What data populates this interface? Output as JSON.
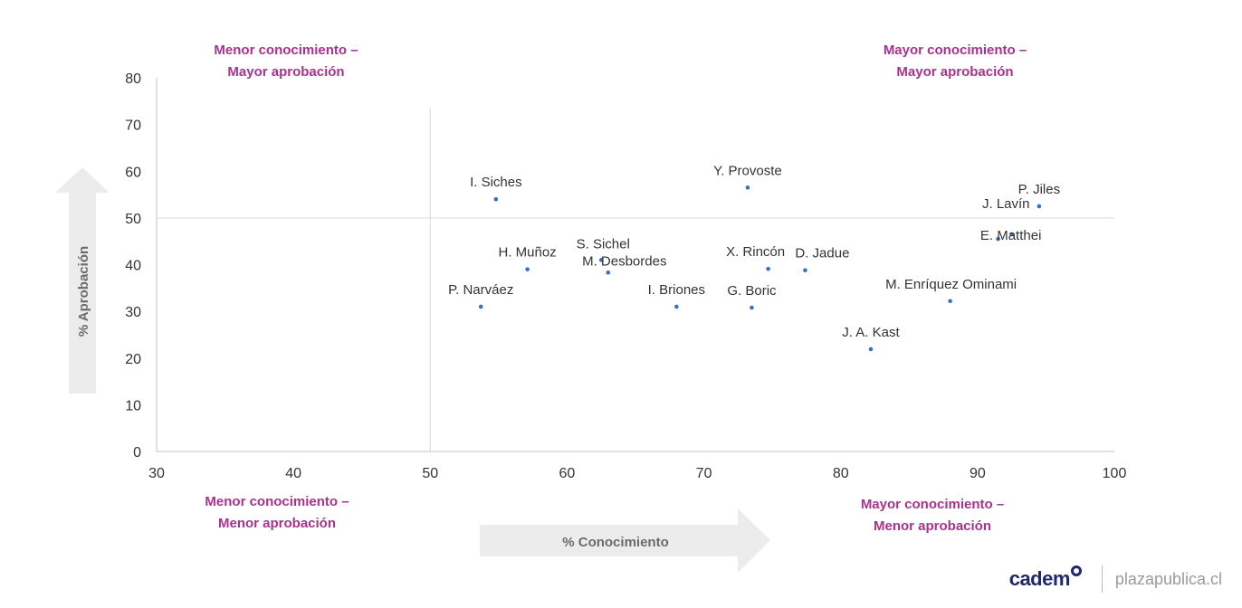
{
  "quadrants": {
    "top_left": [
      "Menor conocimiento –",
      "Mayor aprobación"
    ],
    "top_right": [
      "Mayor conocimiento –",
      "Mayor aprobación"
    ],
    "bottom_left": [
      "Menor conocimiento –",
      "Menor aprobación"
    ],
    "bottom_right": [
      "Mayor conocimiento –",
      "Menor aprobación"
    ]
  },
  "footer": {
    "brand": "cadem",
    "site": "plazapublica.cl"
  },
  "colors": {
    "accent": "#a8328f",
    "point": "#3b6fbf",
    "arrow": "#ececec"
  },
  "chart_data": {
    "type": "scatter",
    "xlabel": "% Conocimiento",
    "ylabel": "% Aprobación",
    "xlim": [
      30,
      100
    ],
    "ylim": [
      0,
      80
    ],
    "xticks": [
      30,
      40,
      50,
      60,
      70,
      80,
      90,
      100
    ],
    "yticks": [
      0,
      10,
      20,
      30,
      40,
      50,
      60,
      70,
      80
    ],
    "reference_lines": {
      "x": 50,
      "y": 50
    },
    "grid": false,
    "points": [
      {
        "label": "I. Siches",
        "x": 54.8,
        "y": 54
      },
      {
        "label": "Y. Provoste",
        "x": 73.2,
        "y": 56.5
      },
      {
        "label": "P. Jiles",
        "x": 94.5,
        "y": 52.5
      },
      {
        "label": "J. Lavín",
        "x": 91.5,
        "y": 45.5
      },
      {
        "label": "E. Matthei",
        "x": 92.5,
        "y": 46.5
      },
      {
        "label": "H. Muñoz",
        "x": 57.1,
        "y": 39
      },
      {
        "label": "S. Sichel",
        "x": 62.5,
        "y": 41
      },
      {
        "label": "M. Desbordes",
        "x": 63,
        "y": 38.3
      },
      {
        "label": "X. Rincón",
        "x": 74.7,
        "y": 39.1
      },
      {
        "label": "D. Jadue",
        "x": 77.4,
        "y": 38.8
      },
      {
        "label": "P. Narváez",
        "x": 53.7,
        "y": 31
      },
      {
        "label": "I. Briones",
        "x": 68,
        "y": 31
      },
      {
        "label": "G. Boric",
        "x": 73.5,
        "y": 30.8
      },
      {
        "label": "M. Enríquez Ominami",
        "x": 88,
        "y": 32.2
      },
      {
        "label": "J. A. Kast",
        "x": 82.2,
        "y": 21.9
      }
    ]
  }
}
